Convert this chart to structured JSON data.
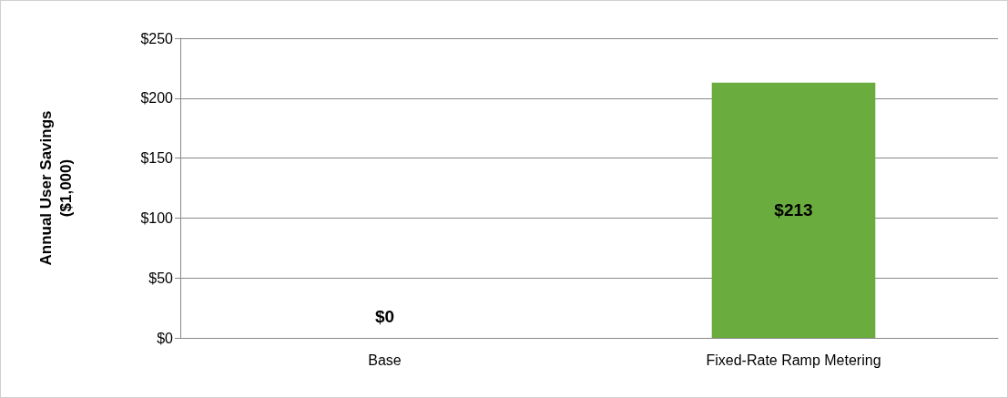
{
  "chart_data": {
    "type": "bar",
    "ylabel": "Annual User Savings\n($1,000)",
    "categories": [
      "Base",
      "Fixed-Rate Ramp Metering"
    ],
    "values": [
      0,
      213
    ],
    "value_labels": [
      "$0",
      "$213"
    ],
    "color": "#6aac3e",
    "ylim": [
      0,
      250
    ],
    "yticks": [
      {
        "value": 0,
        "label": "$0"
      },
      {
        "value": 50,
        "label": "$50"
      },
      {
        "value": 100,
        "label": "$100"
      },
      {
        "value": 150,
        "label": "$150"
      },
      {
        "value": 200,
        "label": "$200"
      },
      {
        "value": 250,
        "label": "$250"
      }
    ],
    "grid": true
  }
}
